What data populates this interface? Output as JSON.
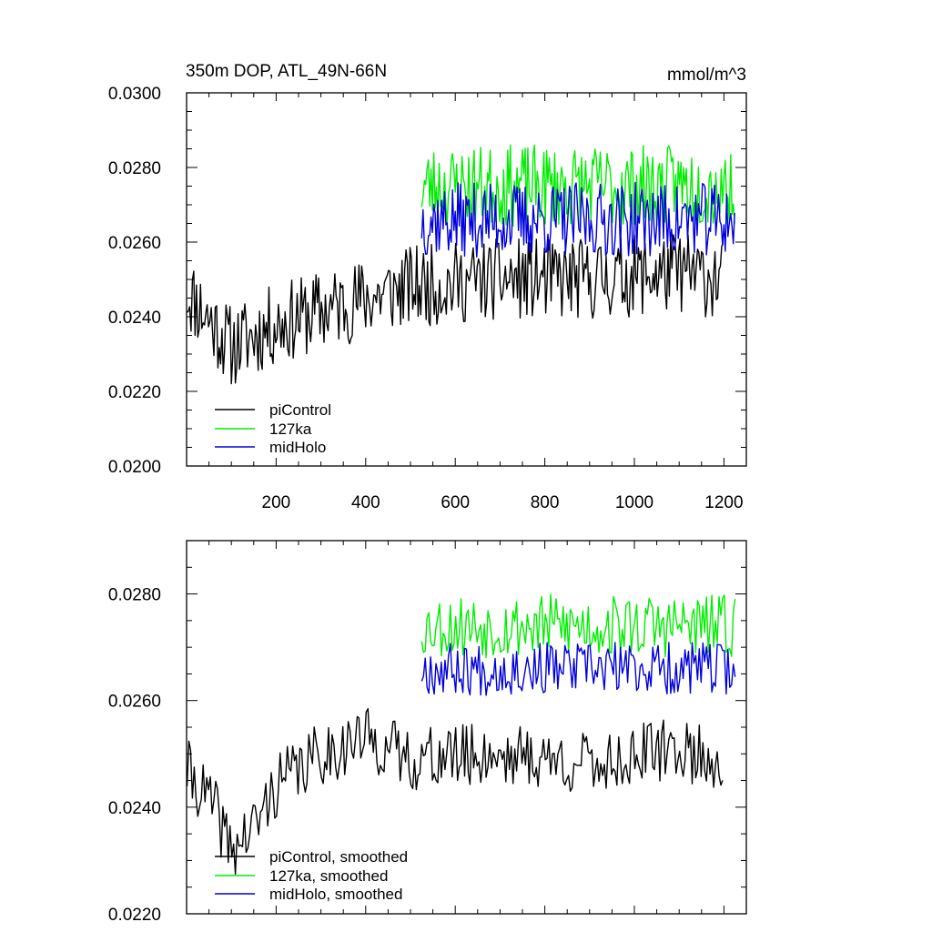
{
  "chart_data": [
    {
      "type": "line",
      "title": "350m DOP, ATL_49N-66N",
      "units": "mmol/m^3",
      "xlim": [
        0,
        1250
      ],
      "ylim": [
        0.02,
        0.03
      ],
      "x_ticks": [
        200,
        400,
        600,
        800,
        1000,
        1200
      ],
      "x_tick_labels": [
        "200",
        "400",
        "600",
        "800",
        "1000",
        "1200"
      ],
      "y_ticks": [
        0.02,
        0.022,
        0.024,
        0.026,
        0.028,
        0.03
      ],
      "y_tick_labels": [
        "0.0200",
        "0.0220",
        "0.0240",
        "0.0260",
        "0.0280",
        "0.0300"
      ],
      "legend": [
        "piControl",
        "127ka",
        "midHolo"
      ],
      "series": [
        {
          "name": "piControl",
          "color": "#000000",
          "x_start": 1,
          "x_end": 1200,
          "step": 3,
          "trend_x": [
            0,
            100,
            200,
            400,
            500,
            700,
            900,
            1100,
            1200
          ],
          "trend_y": [
            0.0247,
            0.0232,
            0.0238,
            0.0245,
            0.0248,
            0.025,
            0.025,
            0.0252,
            0.025
          ],
          "amplitude": 0.0011,
          "seed": 11
        },
        {
          "name": "127ka",
          "color": "#00ee00",
          "x_start": 525,
          "x_end": 1225,
          "step": 3,
          "trend_x": [
            525,
            1225
          ],
          "trend_y": [
            0.0275,
            0.0275
          ],
          "amplitude": 0.0011,
          "seed": 23
        },
        {
          "name": "midHolo",
          "color": "#0000dd",
          "x_start": 525,
          "x_end": 1225,
          "step": 3,
          "trend_x": [
            525,
            1225
          ],
          "trend_y": [
            0.0266,
            0.0266
          ],
          "amplitude": 0.001,
          "seed": 37
        }
      ]
    },
    {
      "type": "line",
      "title": "",
      "xlim": [
        0,
        1250
      ],
      "ylim": [
        0.022,
        0.029
      ],
      "x_ticks": [
        200,
        400,
        600,
        800,
        1000,
        1200
      ],
      "y_ticks": [
        0.022,
        0.024,
        0.026,
        0.028
      ],
      "y_tick_labels": [
        "0.0220",
        "0.0240",
        "0.0260",
        "0.0280"
      ],
      "legend": [
        "piControl, smoothed",
        "127ka, smoothed",
        "midHolo, smoothed"
      ],
      "series": [
        {
          "name": "piControl, smoothed",
          "color": "#000000",
          "x_start": 1,
          "x_end": 1200,
          "step": 4,
          "trend_x": [
            0,
            60,
            100,
            150,
            200,
            300,
            400,
            500,
            700,
            900,
            1100,
            1200
          ],
          "trend_y": [
            0.0247,
            0.024,
            0.0232,
            0.0236,
            0.0244,
            0.025,
            0.0253,
            0.0249,
            0.025,
            0.0248,
            0.0251,
            0.0248
          ],
          "amplitude": 0.0006,
          "seed": 41
        },
        {
          "name": "127ka, smoothed",
          "color": "#00ee00",
          "x_start": 525,
          "x_end": 1225,
          "step": 4,
          "trend_x": [
            525,
            1225
          ],
          "trend_y": [
            0.0274,
            0.0274
          ],
          "amplitude": 0.0006,
          "seed": 53
        },
        {
          "name": "midHolo, smoothed",
          "color": "#0000dd",
          "x_start": 525,
          "x_end": 1225,
          "step": 4,
          "trend_x": [
            525,
            1225
          ],
          "trend_y": [
            0.0266,
            0.0266
          ],
          "amplitude": 0.0005,
          "seed": 67
        }
      ]
    }
  ]
}
